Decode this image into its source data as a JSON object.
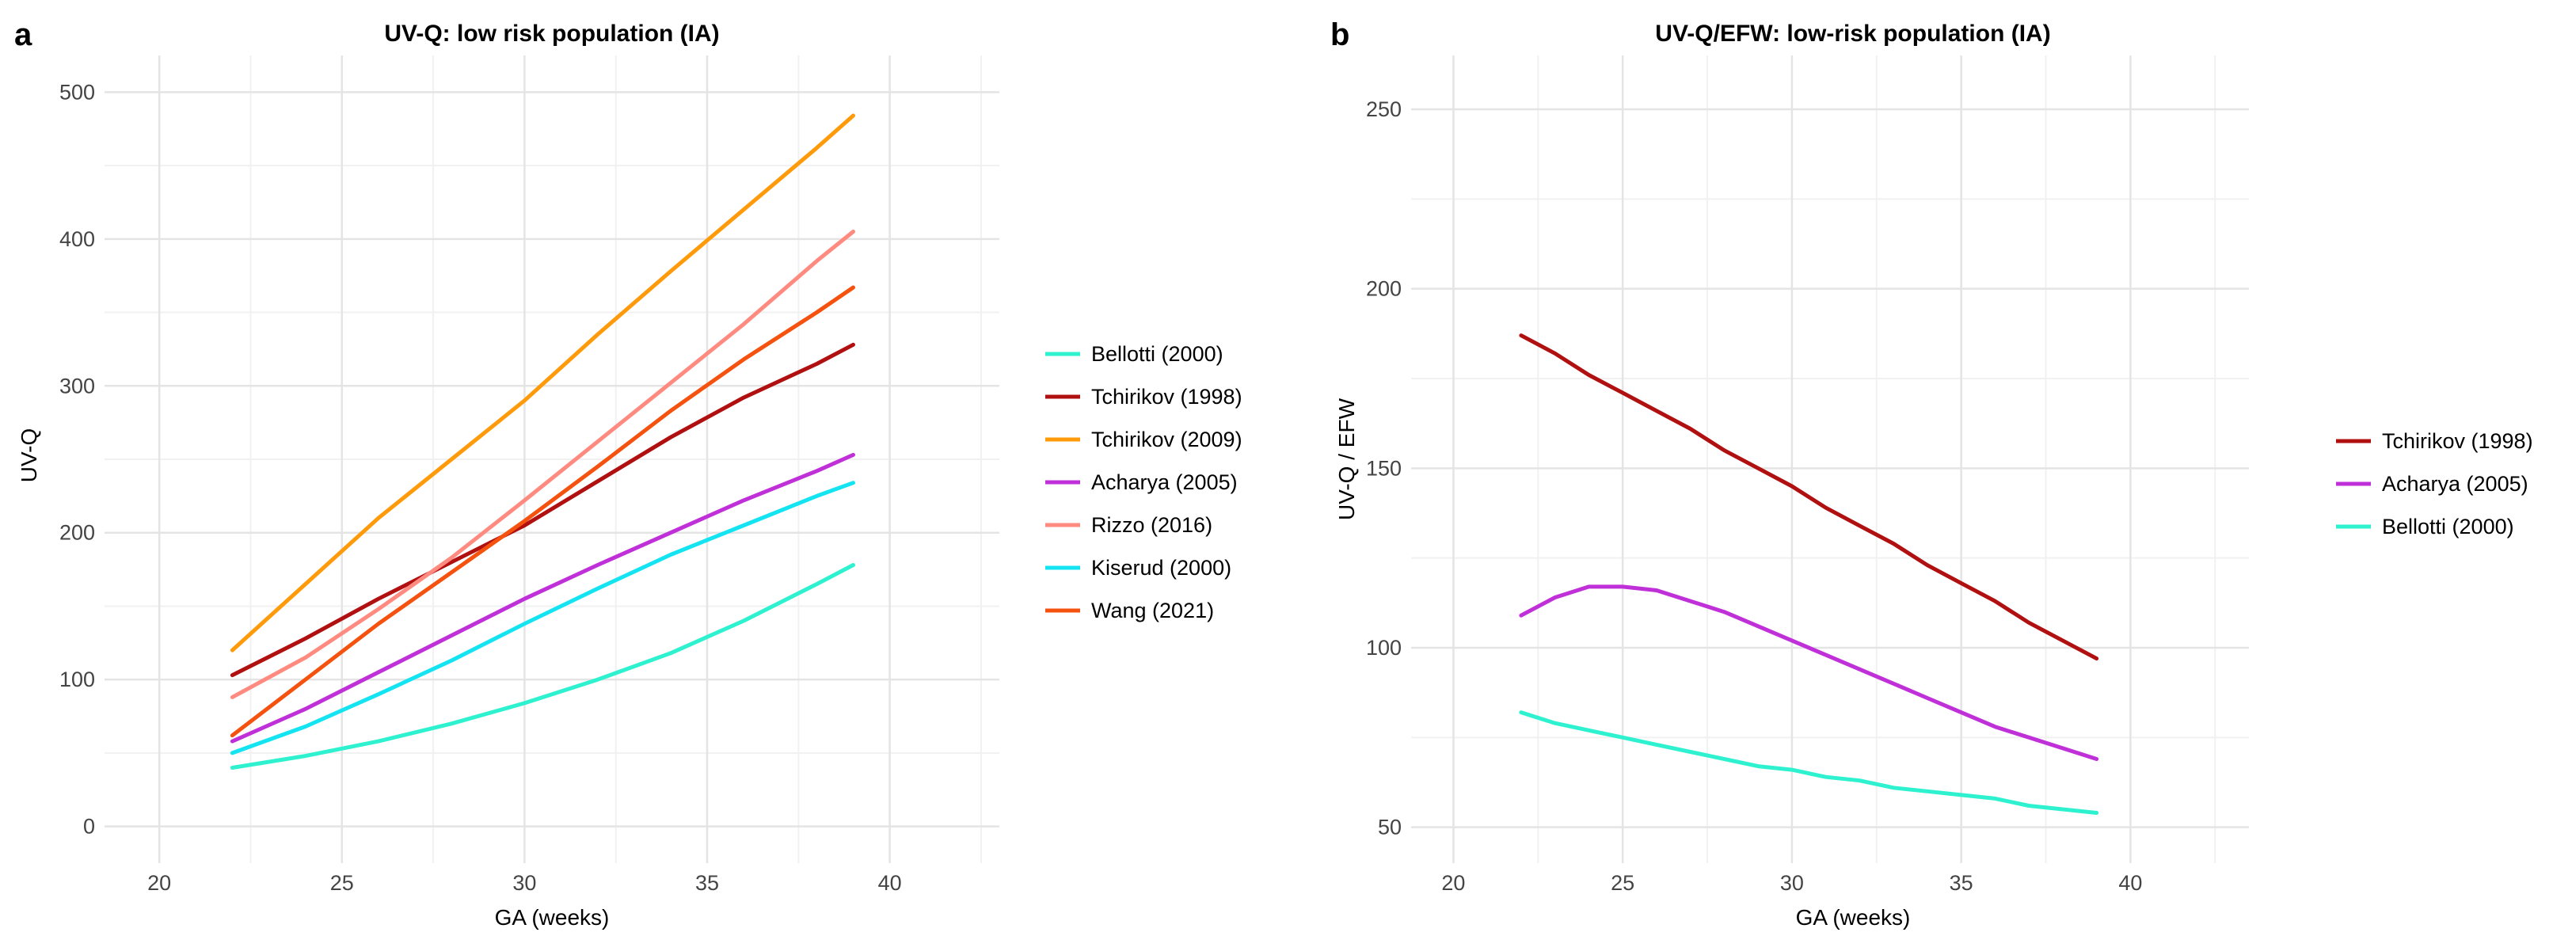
{
  "chart_data": [
    {
      "type": "line",
      "panel": "a",
      "title": "UV-Q: low risk population (IA)",
      "xlabel": "GA (weeks)",
      "ylabel": "UV-Q",
      "xlim": [
        18.5,
        43
      ],
      "ylim": [
        -25,
        525
      ],
      "xticks": [
        20,
        25,
        30,
        35,
        40
      ],
      "yticks": [
        0,
        100,
        200,
        300,
        400,
        500
      ],
      "grid": true,
      "legend_position": "right",
      "series": [
        {
          "name": "Bellotti (2000)",
          "color": "#2ef2cf",
          "x": [
            22,
            24,
            26,
            28,
            30,
            32,
            34,
            36,
            38,
            39
          ],
          "y": [
            40,
            48,
            58,
            70,
            84,
            100,
            118,
            140,
            165,
            178
          ]
        },
        {
          "name": "Tchirikov (1998)",
          "color": "#b01010",
          "x": [
            22,
            24,
            26,
            28,
            30,
            32,
            34,
            36,
            38,
            39
          ],
          "y": [
            103,
            128,
            155,
            180,
            205,
            235,
            265,
            292,
            315,
            328
          ]
        },
        {
          "name": "Tchirikov (2009)",
          "color": "#ff9a0a",
          "x": [
            22,
            24,
            26,
            28,
            30,
            32,
            34,
            36,
            38,
            39
          ],
          "y": [
            120,
            165,
            210,
            250,
            290,
            335,
            378,
            420,
            462,
            484
          ]
        },
        {
          "name": "Acharya (2005)",
          "color": "#c030d8",
          "x": [
            22,
            24,
            26,
            28,
            30,
            32,
            34,
            36,
            38,
            39
          ],
          "y": [
            58,
            80,
            105,
            130,
            155,
            178,
            200,
            222,
            242,
            253
          ]
        },
        {
          "name": "Rizzo (2016)",
          "color": "#ff8a80",
          "x": [
            22,
            24,
            26,
            28,
            30,
            32,
            34,
            36,
            38,
            39
          ],
          "y": [
            88,
            115,
            148,
            183,
            222,
            262,
            302,
            342,
            385,
            405
          ]
        },
        {
          "name": "Kiserud (2000)",
          "color": "#14e4f2",
          "x": [
            22,
            24,
            26,
            28,
            30,
            32,
            34,
            36,
            38,
            39
          ],
          "y": [
            50,
            68,
            90,
            113,
            138,
            162,
            185,
            205,
            225,
            234
          ]
        },
        {
          "name": "Wang (2021)",
          "color": "#f5520f",
          "x": [
            22,
            24,
            26,
            28,
            30,
            32,
            34,
            36,
            38,
            39
          ],
          "y": [
            62,
            100,
            138,
            173,
            208,
            245,
            283,
            318,
            350,
            367
          ]
        }
      ]
    },
    {
      "type": "line",
      "panel": "b",
      "title": "UV-Q/EFW: low-risk population (IA)",
      "xlabel": "GA (weeks)",
      "ylabel": "UV-Q / EFW",
      "xlim": [
        18.75,
        43.5
      ],
      "ylim": [
        40,
        265
      ],
      "xticks": [
        20,
        25,
        30,
        35,
        40
      ],
      "yticks": [
        50,
        100,
        150,
        200,
        250
      ],
      "grid": true,
      "legend_position": "right",
      "series": [
        {
          "name": "Tchirikov (1998)",
          "color": "#b01010",
          "x": [
            22,
            23,
            24,
            25,
            26,
            27,
            28,
            29,
            30,
            31,
            32,
            33,
            34,
            35,
            36,
            37,
            38,
            39
          ],
          "y": [
            187,
            182,
            176,
            171,
            166,
            161,
            155,
            150,
            145,
            139,
            134,
            129,
            123,
            118,
            113,
            107,
            102,
            97
          ]
        },
        {
          "name": "Acharya (2005)",
          "color": "#c030d8",
          "x": [
            22,
            23,
            24,
            25,
            26,
            27,
            28,
            29,
            30,
            31,
            32,
            33,
            34,
            35,
            36,
            37,
            38,
            39
          ],
          "y": [
            109,
            114,
            117,
            117,
            116,
            113,
            110,
            106,
            102,
            98,
            94,
            90,
            86,
            82,
            78,
            75,
            72,
            69
          ]
        },
        {
          "name": "Bellotti (2000)",
          "color": "#2ef2cf",
          "x": [
            22,
            23,
            24,
            25,
            26,
            27,
            28,
            29,
            30,
            31,
            32,
            33,
            34,
            35,
            36,
            37,
            38,
            39
          ],
          "y": [
            82,
            79,
            77,
            75,
            73,
            71,
            69,
            67,
            66,
            64,
            63,
            61,
            60,
            59,
            58,
            56,
            55,
            54
          ]
        }
      ]
    }
  ]
}
